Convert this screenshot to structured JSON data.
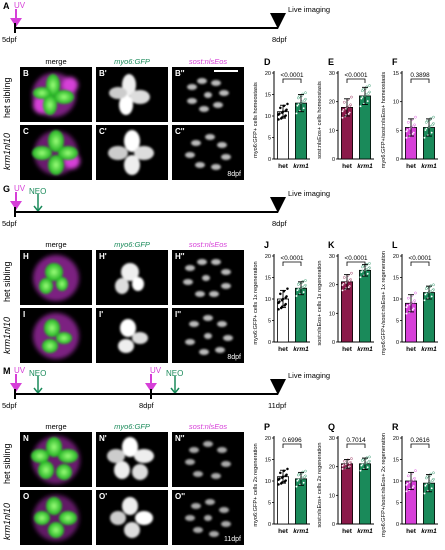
{
  "colors": {
    "magenta": "#d63fd8",
    "green": "#1a8a5a",
    "maroon": "#8b1a4a",
    "black": "#000000",
    "white": "#ffffff"
  },
  "timelines": [
    {
      "panel": "A",
      "start": "5dpf",
      "end": "8dpf",
      "treatments": [
        "UV"
      ],
      "live": "Live imaging"
    },
    {
      "panel": "G",
      "start": "5dpf",
      "end": "8dpf",
      "treatments": [
        "UV",
        "NEO"
      ],
      "live": "Live imaging"
    },
    {
      "panel": "M",
      "start": "5dpf",
      "mid": "8dpf",
      "end": "11dpf",
      "treatments": [
        "UV",
        "NEO",
        "UV",
        "NEO"
      ],
      "live": "Live imaging"
    }
  ],
  "micro_sections": [
    {
      "col_headers": [
        "merge",
        "myo6:GFP",
        "sost:nlsEos"
      ],
      "rows": [
        {
          "row_label": "het sibling",
          "panels": [
            "B",
            "B'",
            "B''"
          ],
          "day": ""
        },
        {
          "row_label": "krm1nl10",
          "panels": [
            "C",
            "C'",
            "C''"
          ],
          "day": "8dpf"
        }
      ]
    },
    {
      "col_headers": [
        "merge",
        "myo6:GFP",
        "sost:nlsEos"
      ],
      "rows": [
        {
          "row_label": "het sibling",
          "panels": [
            "H",
            "H'",
            "H''"
          ],
          "day": ""
        },
        {
          "row_label": "krm1nl10",
          "panels": [
            "I",
            "I'",
            "I''"
          ],
          "day": "8dpf"
        }
      ]
    },
    {
      "col_headers": [
        "merge",
        "myo6:GFP",
        "sost:nlsEos"
      ],
      "rows": [
        {
          "row_label": "het sibling",
          "panels": [
            "N",
            "N'",
            "N''"
          ],
          "day": ""
        },
        {
          "row_label": "krm1nl10",
          "panels": [
            "O",
            "O'",
            "O''"
          ],
          "day": "11dpf"
        }
      ]
    }
  ],
  "chart_data": [
    {
      "panel": "D",
      "type": "bar",
      "categories": [
        "het",
        "krm1"
      ],
      "values": [
        11,
        13
      ],
      "error": [
        1.5,
        2
      ],
      "ylabel": "myo6:GFP+ cells homeostasis",
      "yticks": [
        0,
        5,
        10,
        15,
        20
      ],
      "ylim": [
        0,
        20
      ],
      "pvalue": "<0.0001",
      "fill": [
        "#ffffff",
        "#1a8a5a"
      ]
    },
    {
      "panel": "E",
      "type": "bar",
      "categories": [
        "het",
        "krm1"
      ],
      "values": [
        18,
        22
      ],
      "error": [
        3,
        3
      ],
      "ylabel": "sost:nlsEos+ cells homeostasis",
      "yticks": [
        0,
        10,
        20,
        30
      ],
      "ylim": [
        0,
        30
      ],
      "pvalue": "<0.0001",
      "fill": [
        "#8b1a4a",
        "#1a8a5a"
      ]
    },
    {
      "panel": "F",
      "type": "bar",
      "categories": [
        "het",
        "krm1"
      ],
      "values": [
        5.5,
        5.5
      ],
      "error": [
        1.5,
        1.5
      ],
      "ylabel": "myo6:GFP+/sost:nlsEos+ homeostasis",
      "yticks": [
        0,
        5,
        10,
        15
      ],
      "ylim": [
        0,
        15
      ],
      "pvalue": "0.3898",
      "fill": [
        "#d63fd8",
        "#1a8a5a"
      ]
    },
    {
      "panel": "J",
      "type": "bar",
      "categories": [
        "het",
        "krm1"
      ],
      "values": [
        10,
        12.5
      ],
      "error": [
        2,
        1.5
      ],
      "ylabel": "myo6:GFP+ cells 1x regeneration",
      "yticks": [
        0,
        5,
        10,
        15,
        20
      ],
      "ylim": [
        0,
        20
      ],
      "pvalue": "<0.0001",
      "fill": [
        "#ffffff",
        "#1a8a5a"
      ]
    },
    {
      "panel": "K",
      "type": "bar",
      "categories": [
        "het",
        "krm1"
      ],
      "values": [
        21,
        25
      ],
      "error": [
        2.5,
        2
      ],
      "ylabel": "sost:nlsEos+ cells 1x regeneration",
      "yticks": [
        0,
        10,
        20,
        30
      ],
      "ylim": [
        0,
        30
      ],
      "pvalue": "<0.0001",
      "fill": [
        "#8b1a4a",
        "#1a8a5a"
      ]
    },
    {
      "panel": "L",
      "type": "bar",
      "categories": [
        "het",
        "krm1"
      ],
      "values": [
        9,
        11.5
      ],
      "error": [
        2,
        1.5
      ],
      "ylabel": "myo6:GFP+/sost:nlsEos+ 1x regeneration",
      "yticks": [
        0,
        5,
        10,
        15,
        20
      ],
      "ylim": [
        0,
        20
      ],
      "pvalue": "<0.0001",
      "fill": [
        "#d63fd8",
        "#1a8a5a"
      ]
    },
    {
      "panel": "P",
      "type": "bar",
      "categories": [
        "het",
        "krm1"
      ],
      "values": [
        11,
        10.5
      ],
      "error": [
        1.5,
        1.5
      ],
      "ylabel": "myo6:GFP+ cells 2x regeneration",
      "yticks": [
        0,
        5,
        10,
        15,
        20
      ],
      "ylim": [
        0,
        20
      ],
      "pvalue": "0.6996",
      "fill": [
        "#ffffff",
        "#1a8a5a"
      ]
    },
    {
      "panel": "Q",
      "type": "bar",
      "categories": [
        "het",
        "krm1"
      ],
      "values": [
        21,
        21
      ],
      "error": [
        1.5,
        2
      ],
      "ylabel": "sost:nlsEos+ cells 2x regeneration",
      "yticks": [
        0,
        10,
        20,
        30
      ],
      "ylim": [
        0,
        30
      ],
      "pvalue": "0.7014",
      "fill": [
        "#8b1a4a",
        "#1a8a5a"
      ]
    },
    {
      "panel": "R",
      "type": "bar",
      "categories": [
        "het",
        "krm1"
      ],
      "values": [
        10,
        9.5
      ],
      "error": [
        2,
        2
      ],
      "ylabel": "myo6:GFP+/sost:nlsEos+ 2x regeneration",
      "yticks": [
        0,
        5,
        10,
        15,
        20
      ],
      "ylim": [
        0,
        20
      ],
      "pvalue": "0.2616",
      "fill": [
        "#d63fd8",
        "#1a8a5a"
      ]
    }
  ]
}
